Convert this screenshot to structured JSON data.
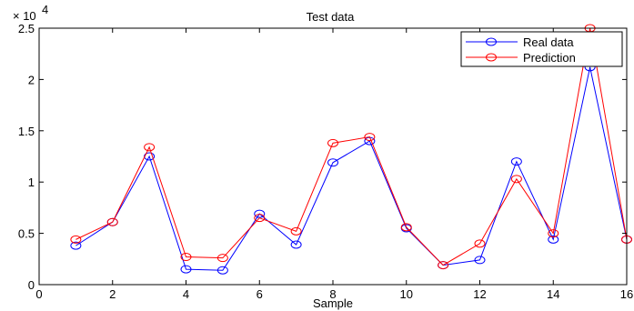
{
  "chart_data": {
    "type": "line",
    "title": "Test data",
    "xlabel": "Sample",
    "ylabel": "",
    "xlim": [
      0,
      16
    ],
    "ylim": [
      0,
      25000
    ],
    "exponent_label": "× 10",
    "exponent_power": "4",
    "x_ticks": [
      0,
      2,
      4,
      6,
      8,
      10,
      12,
      14,
      16
    ],
    "x_tick_labels": [
      "0",
      "2",
      "4",
      "6",
      "8",
      "10",
      "12",
      "14",
      "16"
    ],
    "y_ticks": [
      0,
      5000,
      10000,
      15000,
      20000,
      25000
    ],
    "y_tick_labels": [
      "0",
      "0.5",
      "1",
      "1.5",
      "2",
      "2.5"
    ],
    "x": [
      1,
      2,
      3,
      4,
      5,
      6,
      7,
      8,
      9,
      10,
      11,
      12,
      13,
      14,
      15,
      16
    ],
    "series": [
      {
        "name": "Real data",
        "color": "#0000ff",
        "values": [
          3800,
          6100,
          12500,
          1500,
          1400,
          6900,
          3900,
          11900,
          14000,
          5500,
          1900,
          2400,
          12000,
          4400,
          21200,
          4400
        ]
      },
      {
        "name": "Prediction",
        "color": "#ff0000",
        "values": [
          4400,
          6100,
          13400,
          2700,
          2600,
          6500,
          5200,
          13800,
          14400,
          5600,
          1900,
          4000,
          10300,
          5000,
          25000,
          4400
        ]
      }
    ],
    "legend_position": "top-right",
    "marker": "circle",
    "grid": false
  }
}
